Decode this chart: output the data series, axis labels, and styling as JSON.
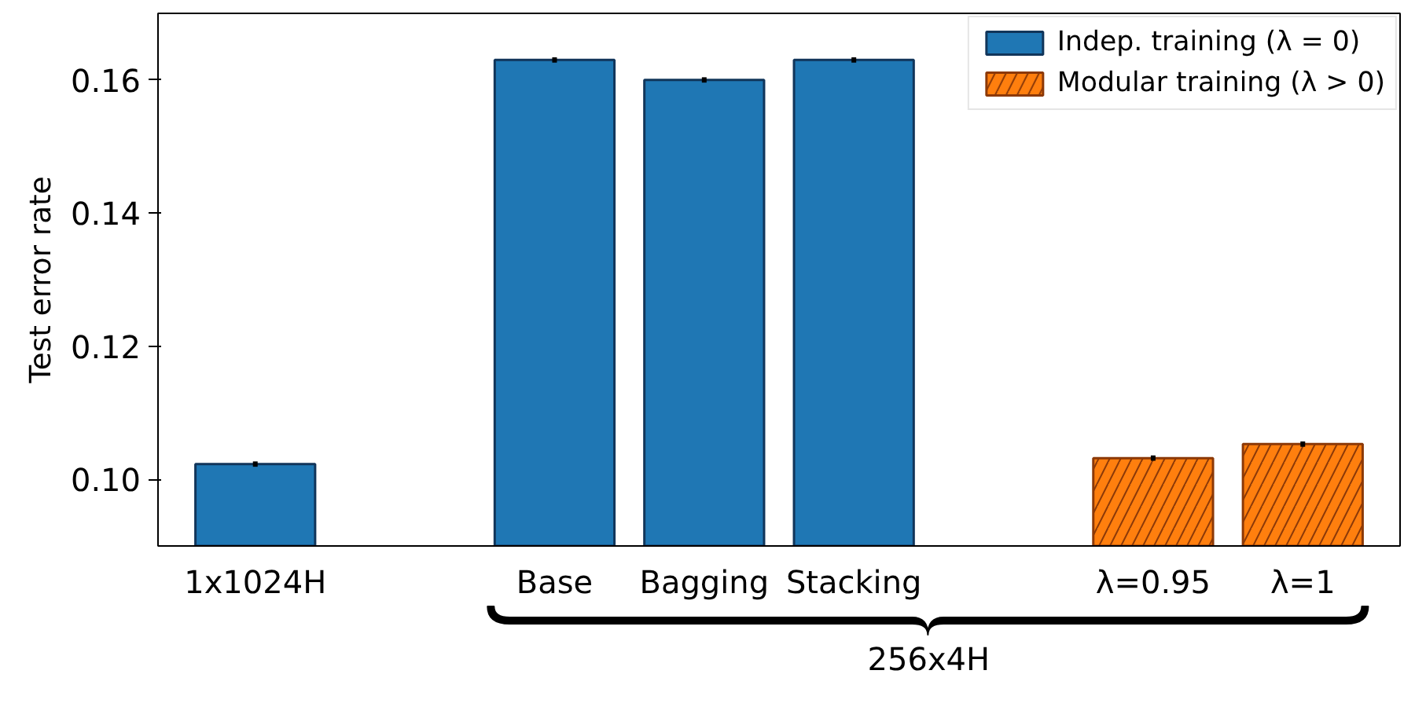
{
  "chart_data": {
    "type": "bar",
    "ylabel": "Test error rate",
    "categories": [
      "1x1024H",
      null,
      "Base",
      "Bagging",
      "Stacking",
      null,
      "λ=0.95",
      "λ=1"
    ],
    "series": [
      {
        "name": "Indep. training (λ = 0)",
        "color": "#1f77b4",
        "values": [
          0.1023,
          null,
          0.163,
          0.16,
          0.163,
          null,
          null,
          null
        ],
        "errors": [
          0.0004,
          null,
          0.0004,
          0.0004,
          0.0004,
          null,
          null,
          null
        ]
      },
      {
        "name": "Modular training (λ > 0)",
        "color": "#ff7f0e",
        "values": [
          null,
          null,
          null,
          null,
          null,
          null,
          0.1032,
          0.1053
        ],
        "errors": [
          null,
          null,
          null,
          null,
          null,
          null,
          0.0004,
          0.0004
        ]
      }
    ],
    "ylim": [
      0.09,
      0.17
    ],
    "yticks": [
      {
        "value": 0.1,
        "label": "0.10"
      },
      {
        "value": 0.12,
        "label": "0.12"
      },
      {
        "value": 0.14,
        "label": "0.14"
      },
      {
        "value": 0.16,
        "label": "0.16"
      }
    ],
    "grid": false,
    "legend": "top right",
    "annotations": [
      "256x4H"
    ]
  }
}
